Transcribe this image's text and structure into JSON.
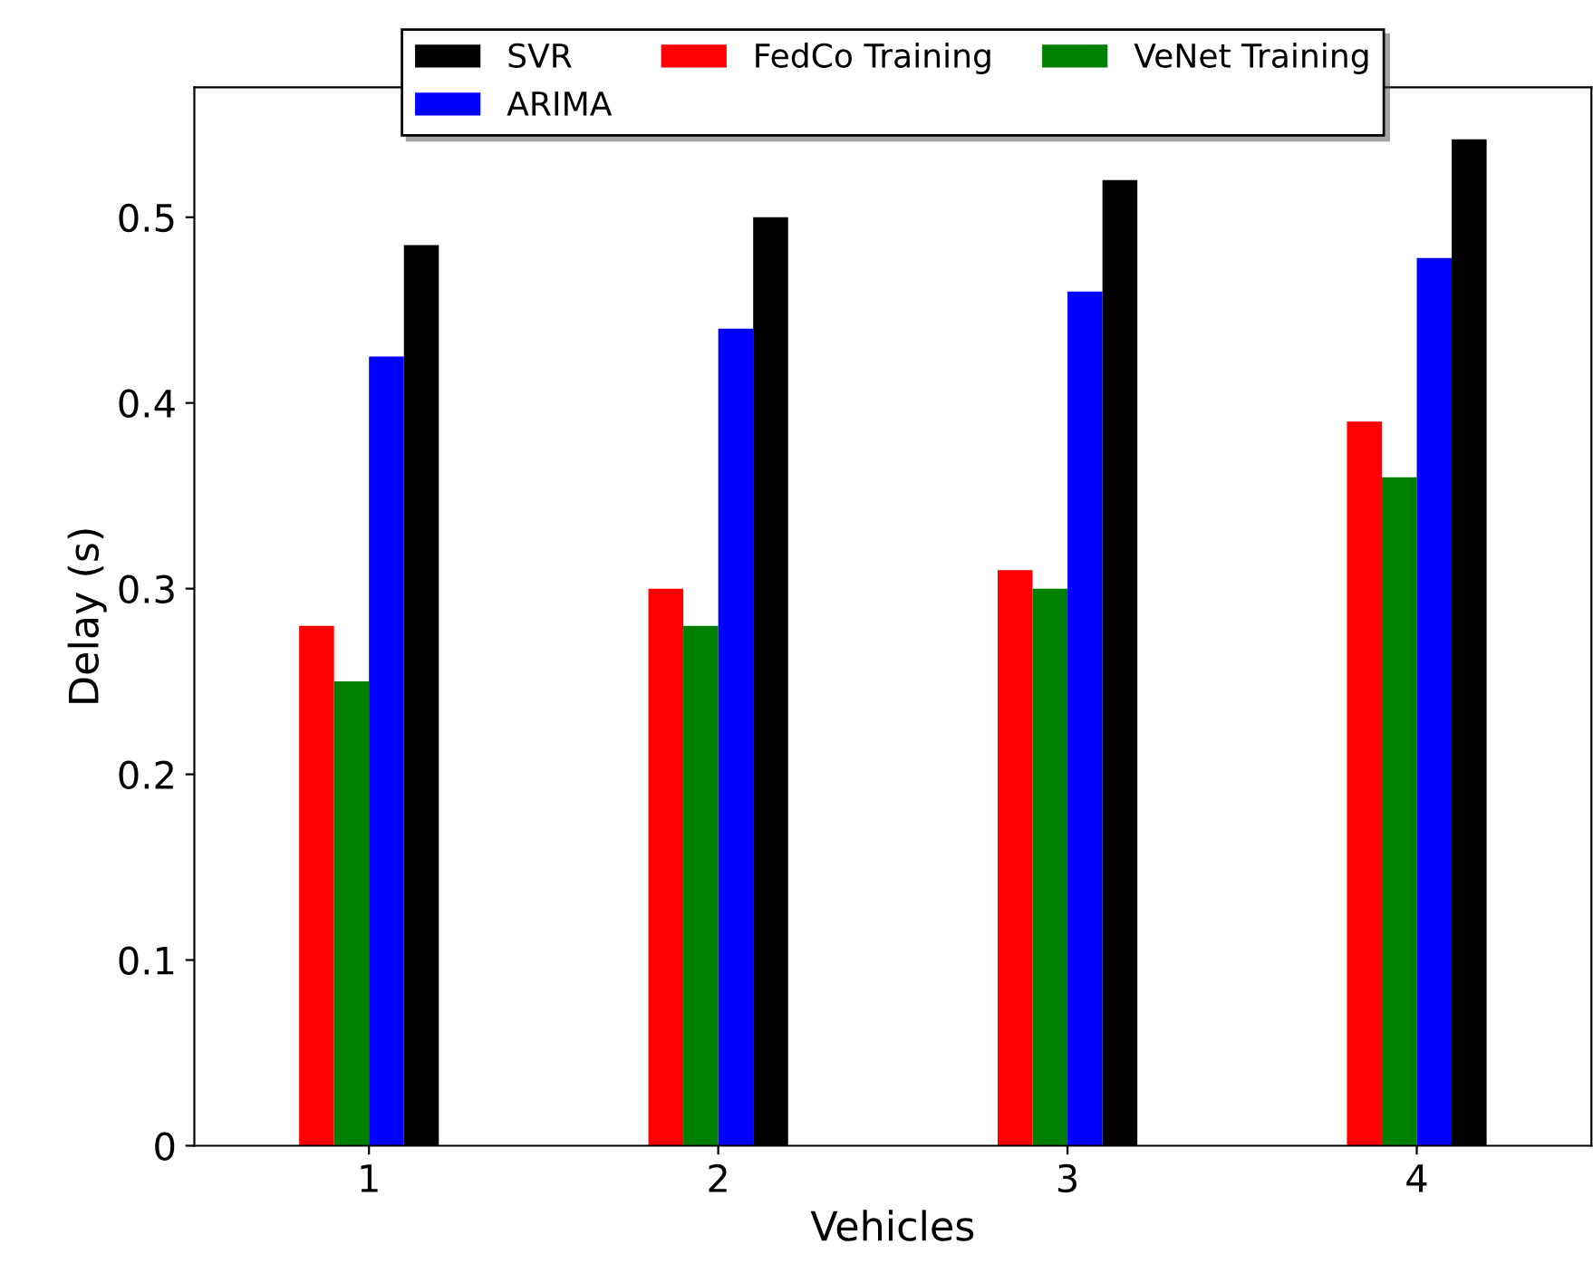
{
  "chart_data": {
    "type": "bar",
    "xlabel": "Vehicles",
    "ylabel": "Delay (s)",
    "categories": [
      "1",
      "2",
      "3",
      "4"
    ],
    "series": [
      {
        "name": "FedCo Training",
        "color": "#ff0000",
        "values": [
          0.28,
          0.3,
          0.31,
          0.39
        ]
      },
      {
        "name": "VeNet Training",
        "color": "#008000",
        "values": [
          0.25,
          0.28,
          0.3,
          0.36
        ]
      },
      {
        "name": "ARIMA",
        "color": "#0000ff",
        "values": [
          0.425,
          0.44,
          0.46,
          0.478
        ]
      },
      {
        "name": "SVR",
        "color": "#000000",
        "values": [
          0.485,
          0.5,
          0.52,
          0.542
        ]
      }
    ],
    "ylim": [
      0,
      0.57
    ],
    "yticks": [
      {
        "value": 0,
        "label": "0"
      },
      0.1,
      0.2,
      0.3,
      0.4,
      0.5
    ],
    "grid": false,
    "legend": "top"
  }
}
